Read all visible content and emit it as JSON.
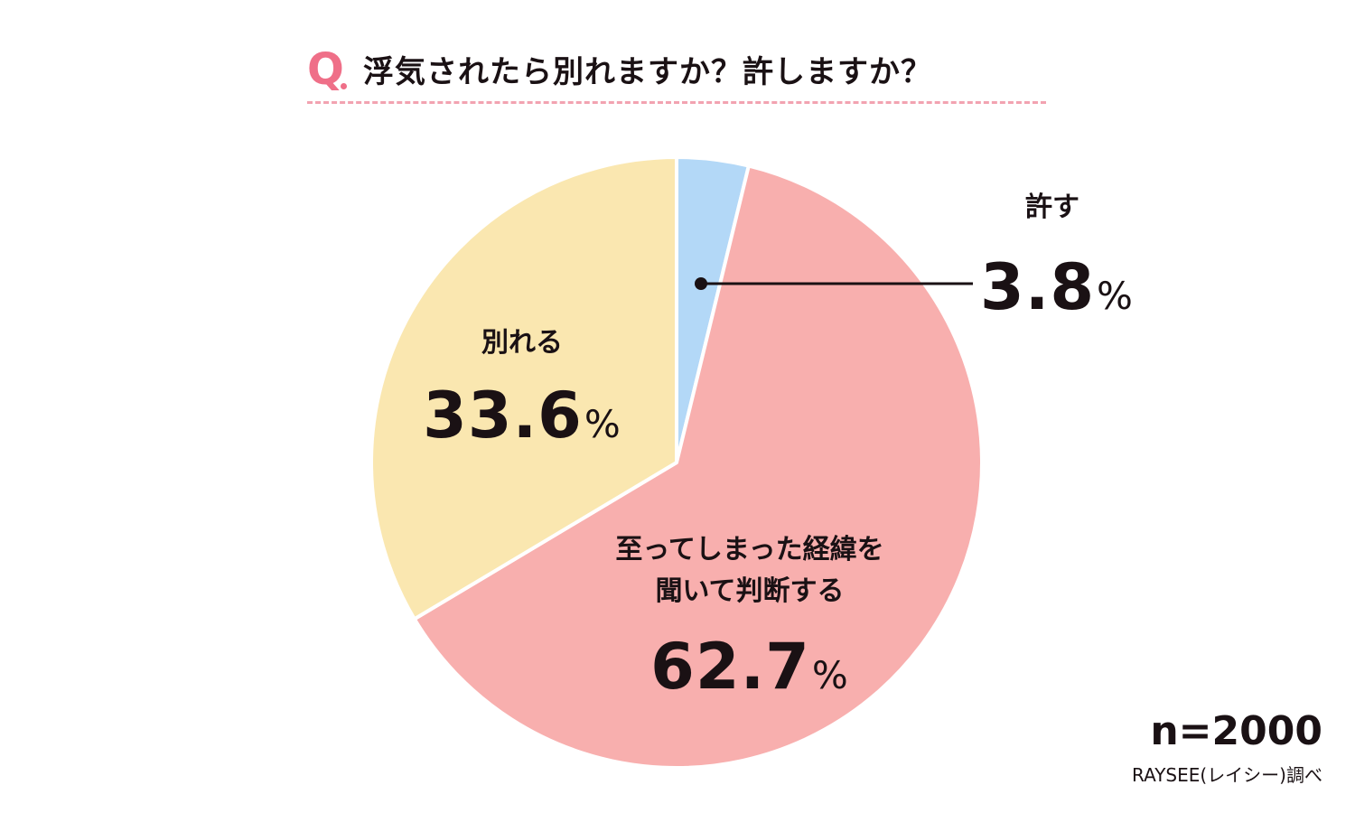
{
  "header": {
    "q_mark": "Q",
    "title": "浮気されたら別れますか？許しますか？"
  },
  "chart_data": {
    "type": "pie",
    "title": "浮気されたら別れますか？許しますか？",
    "unit": "%",
    "slices": [
      {
        "label": "許す",
        "value": 3.8,
        "value_text": "3.8",
        "color": "#b3d8f7"
      },
      {
        "label_lines": [
          "至ってしまった経緯を",
          "聞いて判断する"
        ],
        "value": 62.7,
        "value_text": "62.7",
        "color": "#f8afae"
      },
      {
        "label": "別れる",
        "value": 33.6,
        "value_text": "33.6",
        "color": "#fae7b0"
      }
    ],
    "start": "12 o'clock",
    "direction": "clockwise",
    "legend": "none"
  },
  "footer": {
    "n": "n=2000",
    "source": "RAYSEE(レイシー)調べ"
  }
}
